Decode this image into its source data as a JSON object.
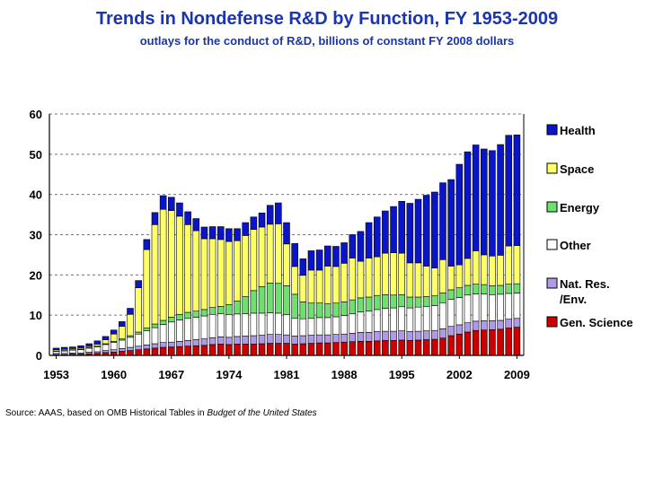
{
  "title": "Trends in Nondefense R&D by Function, FY 1953-2009",
  "subtitle": "outlays for the conduct of R&D, billions of constant FY 2008 dollars",
  "source": {
    "prefix": "Source: AAAS, based on OMB Historical Tables in ",
    "italic": "Budget of the United States"
  },
  "chart_data": {
    "type": "bar",
    "stacked": true,
    "title": "Trends in Nondefense R&D by Function, FY 1953-2009",
    "subtitle": "outlays for the conduct of R&D, billions of constant FY 2008 dollars",
    "xlabel": "",
    "ylabel": "",
    "ylim": [
      0,
      60
    ],
    "yticks": [
      0,
      10,
      20,
      30,
      40,
      50,
      60
    ],
    "xtick_labels": [
      "1953",
      "1960",
      "1967",
      "1974",
      "1981",
      "1988",
      "1995",
      "2002",
      "2009"
    ],
    "grid": "horizontal dashed",
    "legend_position": "right",
    "categories": [
      1953,
      1954,
      1955,
      1956,
      1957,
      1958,
      1959,
      1960,
      1961,
      1962,
      1963,
      1964,
      1965,
      1966,
      1967,
      1968,
      1969,
      1970,
      1971,
      1972,
      1973,
      1974,
      1975,
      1976,
      1977,
      1978,
      1979,
      1980,
      1981,
      1982,
      1983,
      1984,
      1985,
      1986,
      1987,
      1988,
      1989,
      1990,
      1991,
      1992,
      1993,
      1994,
      1995,
      1996,
      1997,
      1998,
      1999,
      2000,
      2001,
      2002,
      2003,
      2004,
      2005,
      2006,
      2007,
      2008,
      2009
    ],
    "series": [
      {
        "name": "Gen. Science",
        "color": "#cc0000",
        "values": [
          0.2,
          0.2,
          0.3,
          0.3,
          0.4,
          0.5,
          0.7,
          0.8,
          1.0,
          1.2,
          1.4,
          1.6,
          1.8,
          2.0,
          2.1,
          2.2,
          2.3,
          2.4,
          2.5,
          2.7,
          2.8,
          2.7,
          2.8,
          2.8,
          2.8,
          2.9,
          3.0,
          3.0,
          3.0,
          2.8,
          2.9,
          3.0,
          3.1,
          3.1,
          3.2,
          3.3,
          3.4,
          3.5,
          3.5,
          3.6,
          3.7,
          3.7,
          3.8,
          3.7,
          3.8,
          3.9,
          4.0,
          4.3,
          4.9,
          5.3,
          5.8,
          6.2,
          6.3,
          6.4,
          6.5,
          6.8,
          7.0
        ]
      },
      {
        "name": "Nat. Res. /Env.",
        "color": "#b09ae8",
        "values": [
          0.3,
          0.3,
          0.3,
          0.3,
          0.4,
          0.4,
          0.5,
          0.6,
          0.7,
          0.8,
          0.9,
          1.0,
          1.1,
          1.2,
          1.2,
          1.3,
          1.4,
          1.5,
          1.6,
          1.7,
          1.8,
          1.8,
          1.9,
          2.0,
          2.1,
          2.1,
          2.2,
          2.2,
          2.1,
          2.0,
          2.0,
          2.0,
          2.0,
          2.0,
          2.0,
          2.0,
          2.1,
          2.2,
          2.2,
          2.3,
          2.3,
          2.3,
          2.3,
          2.2,
          2.2,
          2.2,
          2.2,
          2.3,
          2.3,
          2.3,
          2.3,
          2.3,
          2.3,
          2.2,
          2.2,
          2.2,
          2.2
        ]
      },
      {
        "name": "Other",
        "color": "#ffffff",
        "values": [
          0.5,
          0.6,
          0.7,
          0.8,
          1.0,
          1.2,
          1.5,
          1.8,
          2.1,
          2.5,
          3.0,
          3.5,
          4.0,
          4.5,
          5.0,
          5.3,
          5.5,
          5.6,
          5.7,
          5.8,
          5.8,
          5.6,
          5.6,
          5.6,
          5.6,
          5.5,
          5.4,
          5.3,
          5.0,
          4.4,
          4.2,
          4.2,
          4.3,
          4.3,
          4.4,
          4.6,
          4.9,
          5.1,
          5.3,
          5.5,
          5.7,
          5.8,
          6.0,
          5.9,
          6.0,
          6.1,
          6.2,
          6.5,
          6.7,
          6.8,
          6.9,
          6.8,
          6.7,
          6.5,
          6.5,
          6.4,
          6.3
        ]
      },
      {
        "name": "Energy",
        "color": "#6fe06f",
        "values": [
          0.1,
          0.1,
          0.1,
          0.1,
          0.1,
          0.2,
          0.2,
          0.3,
          0.3,
          0.4,
          0.5,
          0.7,
          0.9,
          1.0,
          1.2,
          1.4,
          1.5,
          1.5,
          1.6,
          1.7,
          1.8,
          2.5,
          3.2,
          4.2,
          5.6,
          6.6,
          7.4,
          7.4,
          7.2,
          6.0,
          4.2,
          3.8,
          3.6,
          3.4,
          3.4,
          3.4,
          3.4,
          3.5,
          3.5,
          3.5,
          3.4,
          3.2,
          3.0,
          2.7,
          2.5,
          2.4,
          2.4,
          2.4,
          2.4,
          2.4,
          2.4,
          2.4,
          2.3,
          2.2,
          2.2,
          2.3,
          2.3
        ]
      },
      {
        "name": "Space",
        "color": "#ffff66",
        "values": [
          0.3,
          0.3,
          0.3,
          0.3,
          0.3,
          0.5,
          1.0,
          1.8,
          3.1,
          5.3,
          11.0,
          19.5,
          24.7,
          27.6,
          26.5,
          24.4,
          21.8,
          20.0,
          17.6,
          17.1,
          16.6,
          15.7,
          15.0,
          15.2,
          15.2,
          14.8,
          14.6,
          14.8,
          10.4,
          6.9,
          6.6,
          8.2,
          8.2,
          9.4,
          9.1,
          9.6,
          10.4,
          9.1,
          9.7,
          9.6,
          10.3,
          10.5,
          10.3,
          8.5,
          8.5,
          7.6,
          6.9,
          8.3,
          5.9,
          5.7,
          6.7,
          8.3,
          7.4,
          7.4,
          7.5,
          9.5,
          9.5
        ]
      },
      {
        "name": "Health",
        "color": "#0a15c8",
        "values": [
          0.4,
          0.5,
          0.4,
          0.6,
          0.7,
          0.8,
          0.8,
          1.0,
          1.2,
          1.5,
          1.8,
          2.5,
          3.0,
          3.4,
          3.3,
          3.3,
          3.2,
          3.0,
          2.9,
          3.0,
          3.2,
          3.2,
          3.0,
          3.2,
          3.1,
          3.5,
          4.7,
          5.2,
          5.3,
          5.7,
          4.1,
          4.8,
          5.0,
          5.0,
          5.0,
          5.1,
          5.8,
          7.4,
          8.8,
          9.9,
          10.5,
          11.5,
          12.9,
          14.8,
          15.8,
          17.6,
          18.9,
          19.1,
          21.5,
          25.0,
          26.5,
          26.3,
          26.3,
          26.2,
          27.5,
          27.5,
          27.5
        ]
      }
    ]
  }
}
